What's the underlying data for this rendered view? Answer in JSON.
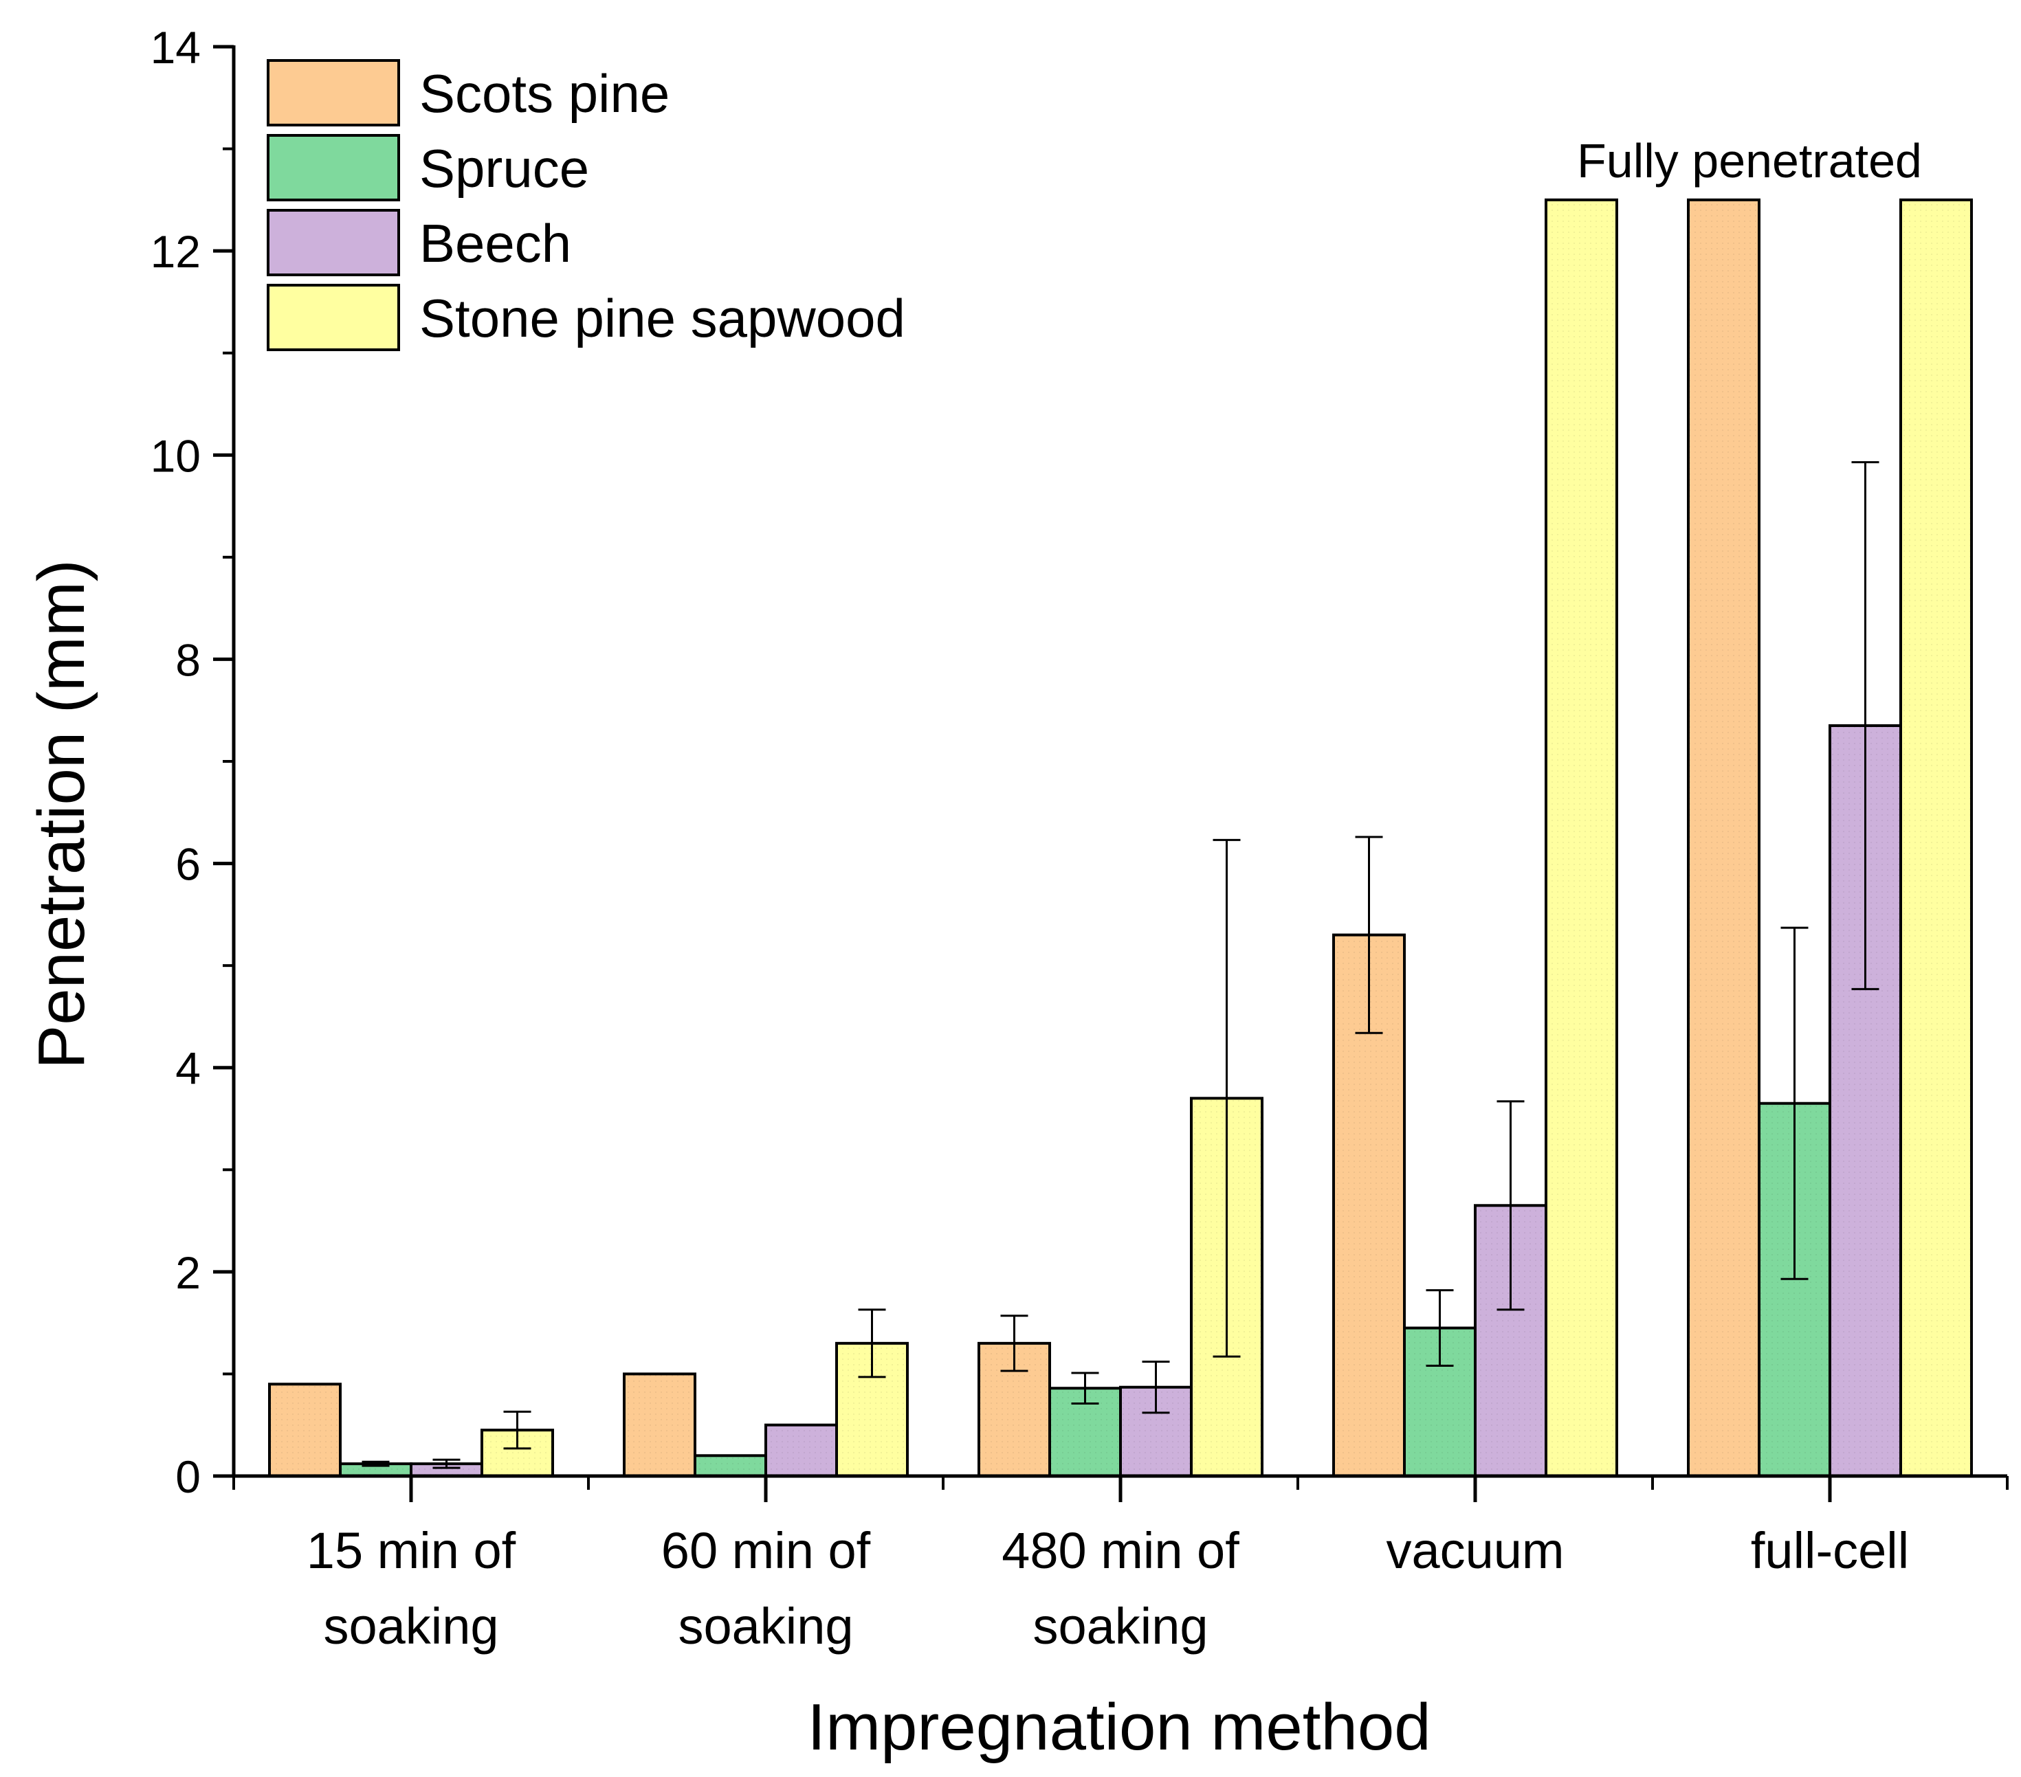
{
  "chart_data": {
    "type": "bar",
    "title": "",
    "xlabel": "Impregnation method",
    "ylabel": "Penetration (mm)",
    "ylim": [
      0,
      14
    ],
    "yticks": [
      0,
      2,
      4,
      6,
      8,
      10,
      12,
      14
    ],
    "categories": [
      [
        "15 min of",
        "soaking"
      ],
      [
        "60 min of",
        "soaking"
      ],
      [
        "480 min of",
        "soaking"
      ],
      [
        "vacuum"
      ],
      [
        "full-cell"
      ]
    ],
    "series": [
      {
        "name": "Scots pine",
        "color": "#FDCB92",
        "values": [
          0.9,
          1.0,
          1.3,
          5.3,
          12.5
        ],
        "errors": [
          null,
          null,
          0.27,
          0.96,
          null
        ]
      },
      {
        "name": "Spruce",
        "color": "#7FD99D",
        "values": [
          0.12,
          0.2,
          0.86,
          1.45,
          3.65
        ],
        "errors": [
          0.02,
          null,
          0.15,
          0.37,
          1.72
        ]
      },
      {
        "name": "Beech",
        "color": "#CDB1DB",
        "values": [
          0.12,
          0.5,
          0.87,
          2.65,
          7.35
        ],
        "errors": [
          0.04,
          null,
          0.25,
          1.02,
          2.58
        ]
      },
      {
        "name": "Stone pine sapwood",
        "color": "#FFFFA0",
        "values": [
          0.45,
          1.3,
          3.7,
          12.5,
          12.5
        ],
        "errors": [
          0.18,
          0.33,
          2.53,
          null,
          null
        ]
      }
    ],
    "annotations": [
      "Fully penetrated"
    ],
    "legend_position": "top-left",
    "grid": false
  }
}
